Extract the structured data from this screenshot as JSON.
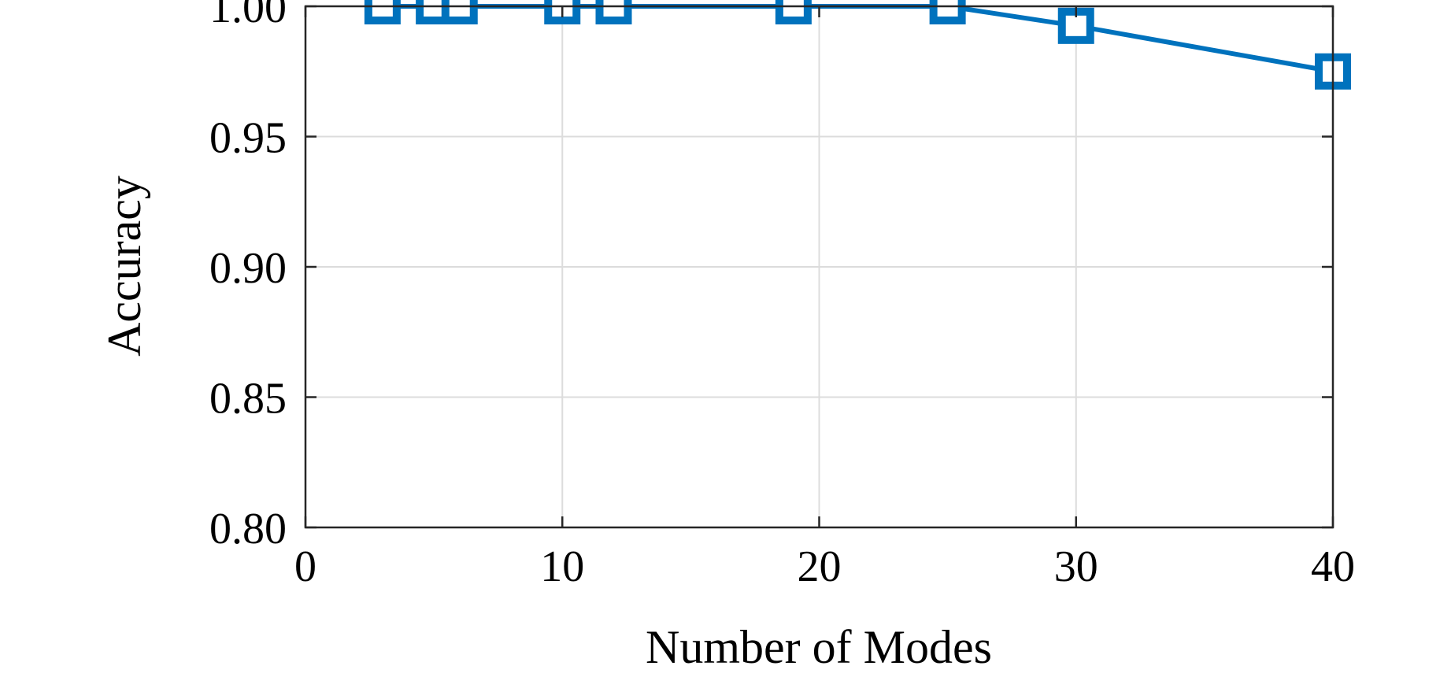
{
  "chart_data": {
    "type": "line",
    "xlabel": "Number of Modes",
    "ylabel": "Accuracy",
    "xlim": [
      0,
      40
    ],
    "ylim": [
      0.8,
      1.0
    ],
    "xticks": [
      "0",
      "10",
      "20",
      "30",
      "40"
    ],
    "yticks": [
      "0.80",
      "0.85",
      "0.90",
      "0.95",
      "1.00"
    ],
    "grid": true,
    "marker": "square",
    "series": [
      {
        "color": "#0072BD",
        "x": [
          3,
          5,
          6,
          10,
          12,
          19,
          25,
          30,
          40
        ],
        "y": [
          1.0,
          1.0,
          1.0,
          1.0,
          1.0,
          1.0,
          1.0,
          0.9925,
          0.975
        ]
      }
    ]
  }
}
